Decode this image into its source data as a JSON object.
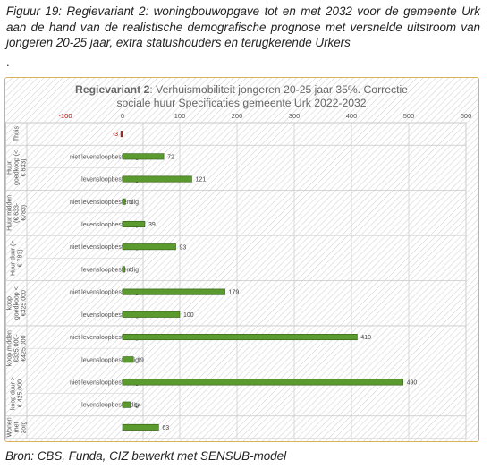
{
  "caption": {
    "text": "Figuur 19: Regievariant 2: woningbouwopgave tot en met 2032 voor de gemeente Urk aan de hand van de realistische demografische prognose met versnelde uitstroom van jongeren 20-25 jaar, extra statushouders en terugkerende Urkers",
    "dot": "."
  },
  "source": "Bron: CBS, Funda, CIZ bewerkt met SENSUB-model",
  "colors": {
    "bar": "#5b9a2e",
    "bar_stroke": "#2f5a14",
    "negative_label": "#c00000",
    "axis_label": "#c00000",
    "frame": "#d8b15a"
  },
  "chart_data": {
    "type": "bar",
    "orientation": "horizontal",
    "title_bold": "Regievariant 2",
    "title_rest": ": Verhuismobiliteit jongeren 20-25 jaar 35%. Correctie",
    "subtitle": "sociale huur Specificaties gemeente Urk 2022-2032",
    "xlim": [
      -100,
      600
    ],
    "xticks": [
      -100,
      0,
      100,
      200,
      300,
      400,
      500,
      600
    ],
    "tick_labels": [
      "-100",
      "0",
      "100",
      "200",
      "300",
      "400",
      "500",
      "600"
    ],
    "grid": true,
    "groups": [
      {
        "label": "Thuis",
        "rows": [
          {
            "label": "",
            "value": -3,
            "value_label": "-3"
          }
        ]
      },
      {
        "label": "Huur goedkoop (< € 633)",
        "rows": [
          {
            "label": "niet levensloopbestendig",
            "value": 72,
            "value_label": "72"
          },
          {
            "label": "levensloopbestendig",
            "value": 121,
            "value_label": "121"
          }
        ]
      },
      {
        "label": "Huur midden (€ 633- €783)",
        "rows": [
          {
            "label": "niet levensloopbestendig",
            "value": 5,
            "value_label": "5"
          },
          {
            "label": "levensloopbestendig",
            "value": 39,
            "value_label": "39"
          }
        ]
      },
      {
        "label": "Huur duur (> € 783)",
        "rows": [
          {
            "label": "niet levensloopbestendig",
            "value": 93,
            "value_label": "93"
          },
          {
            "label": "levensloopbestendig",
            "value": 4,
            "value_label": "4"
          }
        ]
      },
      {
        "label": "koop goedkoop < €325.000",
        "rows": [
          {
            "label": "niet levensloopbestendig",
            "value": 179,
            "value_label": "179"
          },
          {
            "label": "levensloopbestendig",
            "value": 100,
            "value_label": "100"
          }
        ]
      },
      {
        "label": "koop midden €325.000- €425.000",
        "rows": [
          {
            "label": "niet levensloopbestendig",
            "value": 410,
            "value_label": "410"
          },
          {
            "label": "levensloopbestendig",
            "value": 19,
            "value_label": "19"
          }
        ]
      },
      {
        "label": "koop duur > € 425.000",
        "rows": [
          {
            "label": "niet levensloopbestendig",
            "value": 490,
            "value_label": "490"
          },
          {
            "label": "levensloopbestendig",
            "value": 14,
            "value_label": "14"
          }
        ]
      },
      {
        "label": "Wonen met zorg",
        "rows": [
          {
            "label": "",
            "value": 63,
            "value_label": "63"
          }
        ]
      }
    ]
  }
}
